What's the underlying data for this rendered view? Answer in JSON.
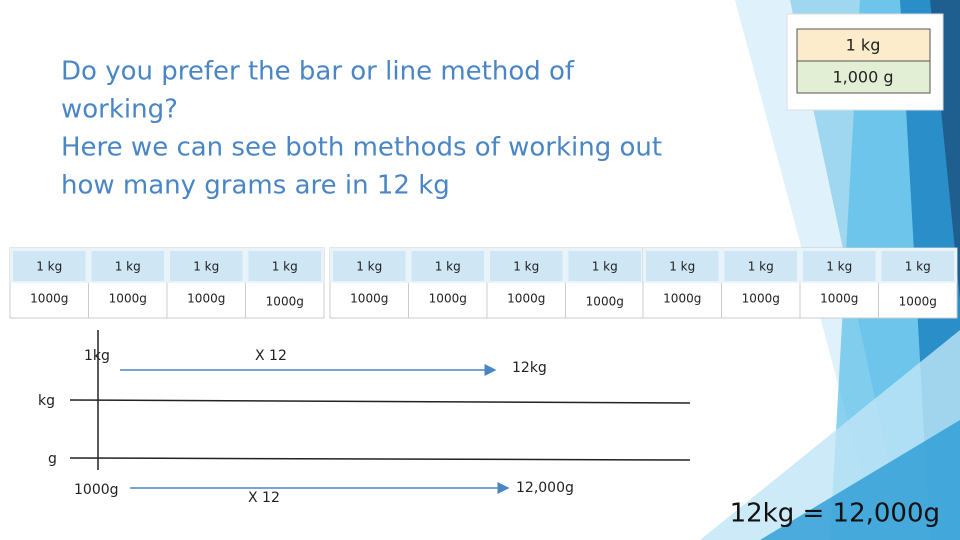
{
  "title_lines": [
    "Do you prefer the bar or line method of",
    "working?",
    "Here we can see both methods of working out",
    "how many grams are in 12 kg"
  ],
  "conversion_box": {
    "top": "1 kg",
    "bottom": "1,000 g"
  },
  "bar_tables": [
    {
      "top": [
        "1 kg",
        "1 kg",
        "1 kg",
        "1 kg"
      ],
      "bottom": [
        "1000g",
        "1000g",
        "1000g",
        "1000g"
      ]
    },
    {
      "top": [
        "1 kg",
        "1 kg",
        "1 kg",
        "1 kg"
      ],
      "bottom": [
        "1000g",
        "1000g",
        "1000g",
        "1000g"
      ]
    },
    {
      "top": [
        "1 kg",
        "1 kg",
        "1 kg",
        "1 kg"
      ],
      "bottom": [
        "1000g",
        "1000g",
        "1000g",
        "1000g"
      ]
    }
  ],
  "line_method": {
    "top_left": "1kg",
    "top_operation": "X 12",
    "top_right": "12kg",
    "kg_axis": "kg",
    "g_axis": "g",
    "bottom_left": "1000g",
    "bottom_operation": "X 12",
    "bottom_right": "12,000g"
  },
  "answer": "12kg = 12,000g"
}
